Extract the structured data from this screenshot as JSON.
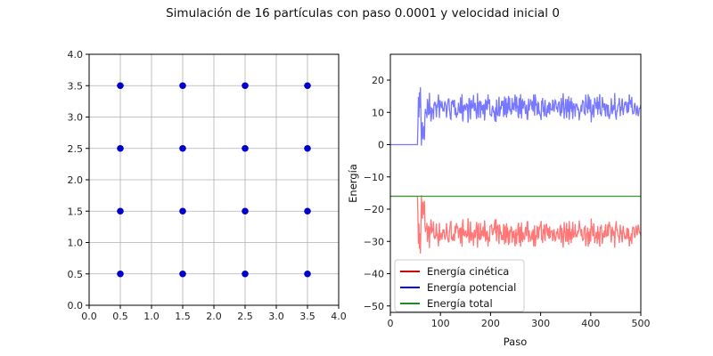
{
  "title": "Simulación de 16 partículas con paso 0.0001 y velocidad inicial 0",
  "chart_data": [
    {
      "type": "scatter",
      "name": "particles",
      "title": "",
      "xlabel": "",
      "ylabel": "",
      "xlim": [
        0.0,
        4.0
      ],
      "ylim": [
        0.0,
        4.0
      ],
      "grid": true,
      "xticks": [
        "0.0",
        "0.5",
        "1.0",
        "1.5",
        "2.0",
        "2.5",
        "3.0",
        "3.5",
        "4.0"
      ],
      "yticks": [
        "0.0",
        "0.5",
        "1.0",
        "1.5",
        "2.0",
        "2.5",
        "3.0",
        "3.5",
        "4.0"
      ],
      "marker_color": "#0000cc",
      "points": [
        [
          0.5,
          0.5
        ],
        [
          1.5,
          0.5
        ],
        [
          2.5,
          0.5
        ],
        [
          3.5,
          0.5
        ],
        [
          0.5,
          1.5
        ],
        [
          1.5,
          1.5
        ],
        [
          2.5,
          1.5
        ],
        [
          3.5,
          1.5
        ],
        [
          0.5,
          2.5
        ],
        [
          1.5,
          2.5
        ],
        [
          2.5,
          2.5
        ],
        [
          3.5,
          2.5
        ],
        [
          0.5,
          3.5
        ],
        [
          1.5,
          3.5
        ],
        [
          2.5,
          3.5
        ],
        [
          3.5,
          3.5
        ]
      ]
    },
    {
      "type": "line",
      "name": "energies",
      "xlabel": "Paso",
      "ylabel": "Energía",
      "xlim": [
        0,
        500
      ],
      "ylim": [
        -52,
        28
      ],
      "xticks": [
        "0",
        "100",
        "200",
        "300",
        "400",
        "500"
      ],
      "yticks": [
        "20",
        "10",
        "0",
        "−10",
        "−20",
        "−30",
        "−40",
        "−50"
      ],
      "ytick_values": [
        20,
        10,
        0,
        -10,
        -20,
        -30,
        -40,
        -50
      ],
      "legend_position": "lower-left",
      "series": [
        {
          "name": "Energía cinética",
          "color": "#ff7777",
          "legend_color": "#cc0000",
          "mean": -27.5,
          "start": -16,
          "amplitude": 3.2
        },
        {
          "name": "Energía potencial",
          "color": "#7777ff",
          "legend_color": "#0000bb",
          "mean": 11.5,
          "start": 0,
          "amplitude": 3.2
        },
        {
          "name": "Energía total",
          "color": "#339933",
          "legend_color": "#228822",
          "mean": -16,
          "start": -16,
          "amplitude": 0
        }
      ],
      "transition_step": 55
    }
  ]
}
